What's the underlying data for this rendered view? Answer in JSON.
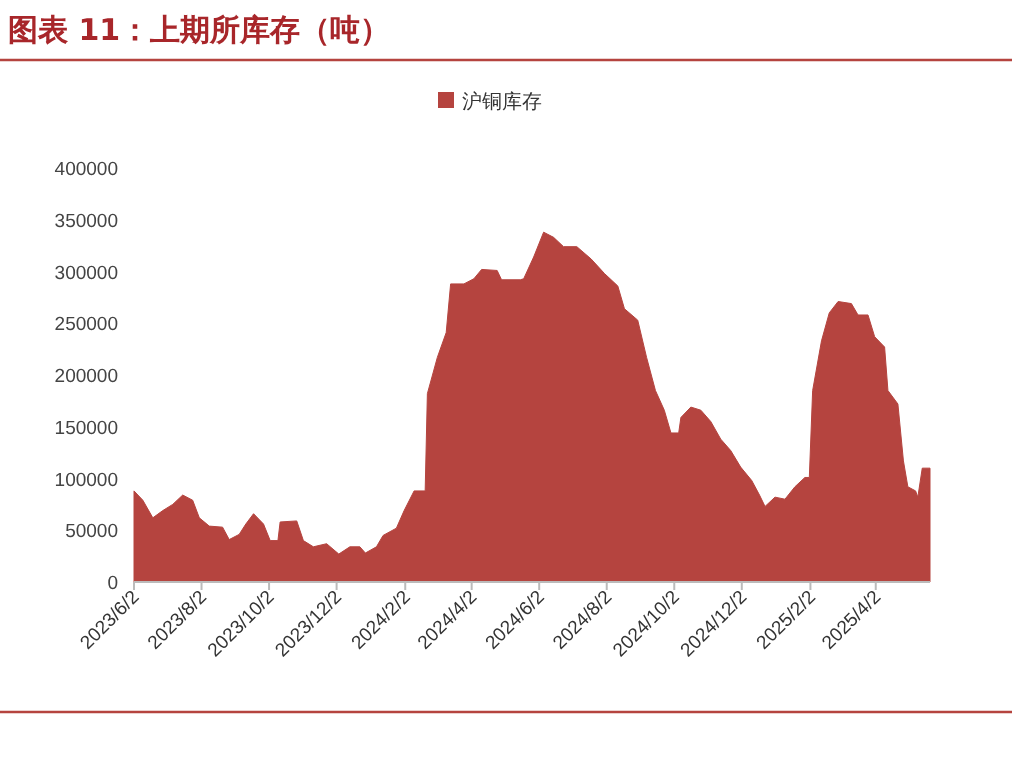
{
  "chart_data": {
    "type": "area",
    "title": "图表 11：上期所库存（吨）",
    "legend": "top",
    "x": [
      "2023-06-02",
      "2023-06-10",
      "2023-06-19",
      "2023-06-28",
      "2023-07-07",
      "2023-07-16",
      "2023-07-25",
      "2023-07-31",
      "2023-08-09",
      "2023-08-21",
      "2023-08-27",
      "2023-09-05",
      "2023-09-11",
      "2023-09-18",
      "2023-09-27",
      "2023-10-03",
      "2023-10-10",
      "2023-10-12",
      "2023-10-27",
      "2023-11-02",
      "2023-11-11",
      "2023-11-23",
      "2023-12-04",
      "2023-12-14",
      "2023-12-23",
      "2023-12-28",
      "2024-01-07",
      "2024-01-13",
      "2024-01-25",
      "2024-02-01",
      "2024-02-10",
      "2024-02-20",
      "2024-02-22",
      "2024-03-02",
      "2024-03-10",
      "2024-03-14",
      "2024-03-26",
      "2024-04-04",
      "2024-04-11",
      "2024-04-25",
      "2024-04-29",
      "2024-05-16",
      "2024-05-19",
      "2024-05-28",
      "2024-06-06",
      "2024-06-15",
      "2024-06-24",
      "2024-07-06",
      "2024-07-19",
      "2024-07-31",
      "2024-08-12",
      "2024-08-18",
      "2024-08-30",
      "2024-09-07",
      "2024-09-15",
      "2024-09-23",
      "2024-09-29",
      "2024-10-06",
      "2024-10-08",
      "2024-10-17",
      "2024-10-26",
      "2024-11-04",
      "2024-11-13",
      "2024-11-22",
      "2024-12-01",
      "2024-12-11",
      "2024-12-18",
      "2024-12-23",
      "2025-01-01",
      "2025-01-10",
      "2025-01-19",
      "2025-01-28",
      "2025-02-01",
      "2025-02-04",
      "2025-02-12",
      "2025-02-19",
      "2025-02-27",
      "2025-03-11",
      "2025-03-17",
      "2025-03-26",
      "2025-04-01",
      "2025-04-10",
      "2025-04-13",
      "2025-04-22",
      "2025-04-27",
      "2025-05-01",
      "2025-05-08",
      "2025-05-10",
      "2025-05-14",
      "2025-05-21"
    ],
    "series": [
      {
        "name": "沪铜库存",
        "color": "#b5443f",
        "values": [
          88000,
          79000,
          62000,
          69000,
          75000,
          84000,
          79000,
          62000,
          54000,
          53000,
          41000,
          46000,
          56000,
          66000,
          56000,
          40000,
          40000,
          58000,
          59000,
          40000,
          34000,
          37000,
          27000,
          34000,
          34000,
          28000,
          34000,
          45000,
          52000,
          69000,
          88000,
          88000,
          182000,
          217000,
          241000,
          288000,
          288000,
          293000,
          302000,
          301000,
          292000,
          292000,
          293000,
          314000,
          338000,
          333000,
          324000,
          324000,
          312000,
          298000,
          286000,
          264000,
          253000,
          217000,
          185000,
          166000,
          144000,
          144000,
          159000,
          169000,
          166000,
          155000,
          138000,
          127000,
          111000,
          98000,
          84000,
          73000,
          82000,
          80000,
          92000,
          101000,
          101000,
          185000,
          233000,
          260000,
          271000,
          269000,
          258000,
          258000,
          237000,
          227000,
          185000,
          172000,
          117000,
          92000,
          88000,
          82000,
          110000,
          110000
        ]
      }
    ],
    "xlim": [
      "2023-06-02",
      "2025-05-21"
    ],
    "xticks": [
      {
        "value": "2023-06-02",
        "label": "2023/6/2"
      },
      {
        "value": "2023-08-02",
        "label": "2023/8/2"
      },
      {
        "value": "2023-10-02",
        "label": "2023/10/2"
      },
      {
        "value": "2023-12-02",
        "label": "2023/12/2"
      },
      {
        "value": "2024-02-02",
        "label": "2024/2/2"
      },
      {
        "value": "2024-04-02",
        "label": "2024/4/2"
      },
      {
        "value": "2024-06-02",
        "label": "2024/6/2"
      },
      {
        "value": "2024-08-02",
        "label": "2024/8/2"
      },
      {
        "value": "2024-10-02",
        "label": "2024/10/2"
      },
      {
        "value": "2024-12-02",
        "label": "2024/12/2"
      },
      {
        "value": "2025-02-02",
        "label": "2025/2/2"
      },
      {
        "value": "2025-04-02",
        "label": "2025/4/2"
      }
    ],
    "ylim": [
      0,
      400000
    ],
    "yticks": [
      0,
      50000,
      100000,
      150000,
      200000,
      250000,
      300000,
      350000,
      400000
    ]
  }
}
